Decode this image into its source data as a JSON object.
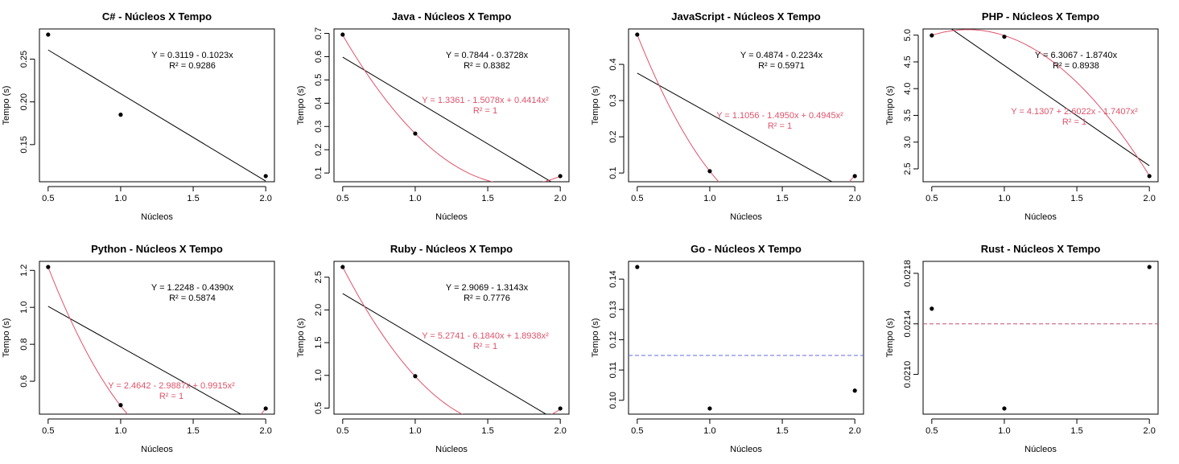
{
  "chart_data": [
    {
      "type": "scatter",
      "title": "C# - Núcleos X Tempo",
      "xlabel": "Núcleos",
      "ylabel": "Tempo (s)",
      "xlim": [
        0.5,
        2.0
      ],
      "ylim": [
        0.1132,
        0.2787
      ],
      "xticks": [
        "0.5",
        "1.0",
        "1.5",
        "2.0"
      ],
      "yticks": [
        "0.15",
        "0.20",
        "0.25"
      ],
      "x": [
        0.5,
        1.0,
        2.0
      ],
      "y": [
        0.2787,
        0.185,
        0.1132
      ],
      "linear_fit": {
        "a": 0.3119,
        "b": -0.1023,
        "label": "Y = 0.3119 - 0.1023x",
        "r2": "R² = 0.9286"
      },
      "quadratic_fit": null,
      "mean_line": null
    },
    {
      "type": "scatter",
      "title": "Java - Núcleos X Tempo",
      "xlabel": "Núcleos",
      "ylabel": "Tempo (s)",
      "xlim": [
        0.5,
        2.0
      ],
      "ylim": [
        0.0868,
        0.6948
      ],
      "xticks": [
        "0.5",
        "1.0",
        "1.5",
        "2.0"
      ],
      "yticks": [
        "0.1",
        "0.2",
        "0.3",
        "0.4",
        "0.5",
        "0.6",
        "0.7"
      ],
      "x": [
        0.5,
        1.0,
        2.0
      ],
      "y": [
        0.6948,
        0.2697,
        0.0868
      ],
      "linear_fit": {
        "a": 0.7844,
        "b": -0.3728,
        "label": "Y = 0.7844 - 0.3728x",
        "r2": "R² = 0.8382"
      },
      "quadratic_fit": {
        "a": 1.3361,
        "b": -1.5078,
        "c": 0.4414,
        "label": "Y = 1.3361 - 1.5078x + 0.4414x²",
        "r2": "R² = 1"
      },
      "mean_line": null
    },
    {
      "type": "scatter",
      "title": "JavaScript - Núcleos X Tempo",
      "xlabel": "Núcleos",
      "ylabel": "Tempo (s)",
      "xlim": [
        0.5,
        2.0
      ],
      "ylim": [
        0.0915,
        0.4822
      ],
      "xticks": [
        "0.5",
        "1.0",
        "1.5",
        "2.0"
      ],
      "yticks": [
        "0.1",
        "0.2",
        "0.3",
        "0.4"
      ],
      "x": [
        0.5,
        1.0,
        2.0
      ],
      "y": [
        0.4822,
        0.1051,
        0.0915
      ],
      "linear_fit": {
        "a": 0.4874,
        "b": -0.2234,
        "label": "Y = 0.4874 - 0.2234x",
        "r2": "R² = 0.5971"
      },
      "quadratic_fit": {
        "a": 1.1056,
        "b": -1.495,
        "c": 0.4945,
        "label": "Y = 1.1056 - 1.4950x + 0.4945x²",
        "r2": "R² = 1"
      },
      "mean_line": null
    },
    {
      "type": "scatter",
      "title": "PHP - Núcleos X Tempo",
      "xlabel": "Núcleos",
      "ylabel": "Tempo (s)",
      "xlim": [
        0.5,
        2.0
      ],
      "ylim": [
        2.365,
        5.01
      ],
      "xticks": [
        "0.5",
        "1.0",
        "1.5",
        "2.0"
      ],
      "yticks": [
        "2.5",
        "3.0",
        "3.5",
        "4.0",
        "4.5",
        "5.0"
      ],
      "x": [
        0.5,
        1.0,
        2.0
      ],
      "y": [
        4.995,
        4.97,
        2.365
      ],
      "linear_fit": {
        "a": 6.3067,
        "b": -1.874,
        "label": "Y = 6.3067 - 1.8740x",
        "r2": "R² = 0.8938"
      },
      "quadratic_fit": {
        "a": 4.1307,
        "b": 2.6022,
        "c": -1.7407,
        "label": "Y = 4.1307 + 2.6022x - 1.7407x²",
        "r2": "R² = 1"
      },
      "mean_line": null
    },
    {
      "type": "scatter",
      "title": "Python - Núcleos X Tempo",
      "xlabel": "Núcleos",
      "ylabel": "Tempo (s)",
      "xlim": [
        0.5,
        2.0
      ],
      "ylim": [
        0.4526,
        1.2183
      ],
      "xticks": [
        "0.5",
        "1.0",
        "1.5",
        "2.0"
      ],
      "yticks": [
        "0.6",
        "0.8",
        "1.0",
        "1.2"
      ],
      "x": [
        0.5,
        1.0,
        2.0
      ],
      "y": [
        1.2183,
        0.4709,
        0.4526
      ],
      "linear_fit": {
        "a": 1.2248,
        "b": -0.439,
        "label": "Y = 1.2248 - 0.4390x",
        "r2": "R² = 0.5874"
      },
      "quadratic_fit": {
        "a": 2.4642,
        "b": -2.9887,
        "c": 0.9915,
        "label": "Y = 2.4642 - 2.9887x + 0.9915x²",
        "r2": "R² = 1"
      },
      "mean_line": null
    },
    {
      "type": "scatter",
      "title": "Ruby - Núcleos X Tempo",
      "xlabel": "Núcleos",
      "ylabel": "Tempo (s)",
      "xlim": [
        0.5,
        2.0
      ],
      "ylim": [
        0.4941,
        2.6556
      ],
      "xticks": [
        "0.5",
        "1.0",
        "1.5",
        "2.0"
      ],
      "yticks": [
        "0.5",
        "1.0",
        "1.5",
        "2.0",
        "2.5"
      ],
      "x": [
        0.5,
        1.0,
        2.0
      ],
      "y": [
        2.6556,
        0.9882,
        0.4941
      ],
      "linear_fit": {
        "a": 2.9069,
        "b": -1.3143,
        "label": "Y = 2.9069 - 1.3143x",
        "r2": "R² = 0.7776"
      },
      "quadratic_fit": {
        "a": 5.2741,
        "b": -6.184,
        "c": 1.8938,
        "label": "Y = 5.2741 - 6.1840x + 1.8938x²",
        "r2": "R² = 1"
      },
      "mean_line": null
    },
    {
      "type": "scatter",
      "title": "Go - Núcleos X Tempo",
      "xlabel": "Núcleos",
      "ylabel": "Tempo (s)",
      "xlim": [
        0.5,
        2.0
      ],
      "ylim": [
        0.0973,
        0.144
      ],
      "xticks": [
        "0.5",
        "1.0",
        "1.5",
        "2.0"
      ],
      "yticks": [
        "0.10",
        "0.11",
        "0.12",
        "0.13",
        "0.14"
      ],
      "x": [
        0.5,
        1.0,
        2.0
      ],
      "y": [
        0.144,
        0.0973,
        0.1032
      ],
      "linear_fit": null,
      "quadratic_fit": null,
      "mean_line": {
        "y": 0.1148,
        "color": "#6a6ae0"
      }
    },
    {
      "type": "scatter",
      "title": "Rust - Núcleos X Tempo",
      "xlabel": "Núcleos",
      "ylabel": "Tempo (s)",
      "xlim": [
        0.5,
        2.0
      ],
      "ylim": [
        0.02073,
        0.02185
      ],
      "xticks": [
        "0.5",
        "1.0",
        "1.5",
        "2.0"
      ],
      "yticks": [
        "0.0210",
        "0.0214",
        "0.0218"
      ],
      "x": [
        0.5,
        1.0,
        2.0
      ],
      "y": [
        0.02152,
        0.02073,
        0.02185
      ],
      "linear_fit": null,
      "quadratic_fit": null,
      "mean_line": {
        "y": 0.0214,
        "color": "#c05070"
      }
    }
  ],
  "colors": {
    "points": "#000000",
    "linear": "#000000",
    "quadratic": "#df536b",
    "axes": "#000000"
  }
}
